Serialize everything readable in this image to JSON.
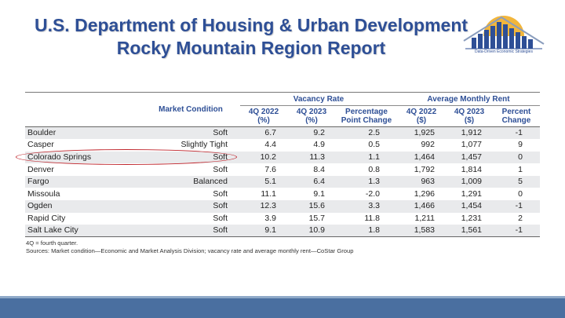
{
  "header": {
    "title_line1": "U.S. Department of Housing & Urban Development",
    "title_line2": "Rocky Mountain Region Report",
    "logo_caption": "Data-Driven Economic Strategies",
    "brand_color": "#2e4f96"
  },
  "table": {
    "groups": {
      "market_condition": "Market Condition",
      "vacancy_rate": "Vacancy Rate",
      "average_rent": "Average Monthly Rent"
    },
    "columns": {
      "vac_2022": "4Q 2022 (%)",
      "vac_2023": "4Q 2023 (%)",
      "vac_change": "Percentage Point Change",
      "rent_2022": "4Q 2022 ($)",
      "rent_2023": "4Q 2023 ($)",
      "rent_change": "Percent Change"
    },
    "rows": [
      {
        "city": "Boulder",
        "condition": "Soft",
        "vac_2022": "6.7",
        "vac_2023": "9.2",
        "vac_change": "2.5",
        "rent_2022": "1,925",
        "rent_2023": "1,912",
        "rent_change": "-1"
      },
      {
        "city": "Casper",
        "condition": "Slightly Tight",
        "vac_2022": "4.4",
        "vac_2023": "4.9",
        "vac_change": "0.5",
        "rent_2022": "992",
        "rent_2023": "1,077",
        "rent_change": "9"
      },
      {
        "city": "Colorado Springs",
        "condition": "Soft",
        "vac_2022": "10.2",
        "vac_2023": "11.3",
        "vac_change": "1.1",
        "rent_2022": "1,464",
        "rent_2023": "1,457",
        "rent_change": "0"
      },
      {
        "city": "Denver",
        "condition": "Soft",
        "vac_2022": "7.6",
        "vac_2023": "8.4",
        "vac_change": "0.8",
        "rent_2022": "1,792",
        "rent_2023": "1,814",
        "rent_change": "1"
      },
      {
        "city": "Fargo",
        "condition": "Balanced",
        "vac_2022": "5.1",
        "vac_2023": "6.4",
        "vac_change": "1.3",
        "rent_2022": "963",
        "rent_2023": "1,009",
        "rent_change": "5"
      },
      {
        "city": "Missoula",
        "condition": "Soft",
        "vac_2022": "11.1",
        "vac_2023": "9.1",
        "vac_change": "-2.0",
        "rent_2022": "1,296",
        "rent_2023": "1,291",
        "rent_change": "0"
      },
      {
        "city": "Ogden",
        "condition": "Soft",
        "vac_2022": "12.3",
        "vac_2023": "15.6",
        "vac_change": "3.3",
        "rent_2022": "1,466",
        "rent_2023": "1,454",
        "rent_change": "-1"
      },
      {
        "city": "Rapid City",
        "condition": "Soft",
        "vac_2022": "3.9",
        "vac_2023": "15.7",
        "vac_change": "11.8",
        "rent_2022": "1,211",
        "rent_2023": "1,231",
        "rent_change": "2"
      },
      {
        "city": "Salt Lake City",
        "condition": "Soft",
        "vac_2022": "9.1",
        "vac_2023": "10.9",
        "vac_change": "1.8",
        "rent_2022": "1,583",
        "rent_2023": "1,561",
        "rent_change": "-1"
      }
    ]
  },
  "notes": {
    "footnote": "4Q = fourth quarter.",
    "sources": "Sources: Market condition—Economic and Market Analysis Division; vacancy rate and average monthly rent—CoStar Group"
  },
  "highlight": {
    "row": "Colorado Springs",
    "color": "#c0262d"
  },
  "footer": {
    "bar_color": "#4a6fa0"
  }
}
